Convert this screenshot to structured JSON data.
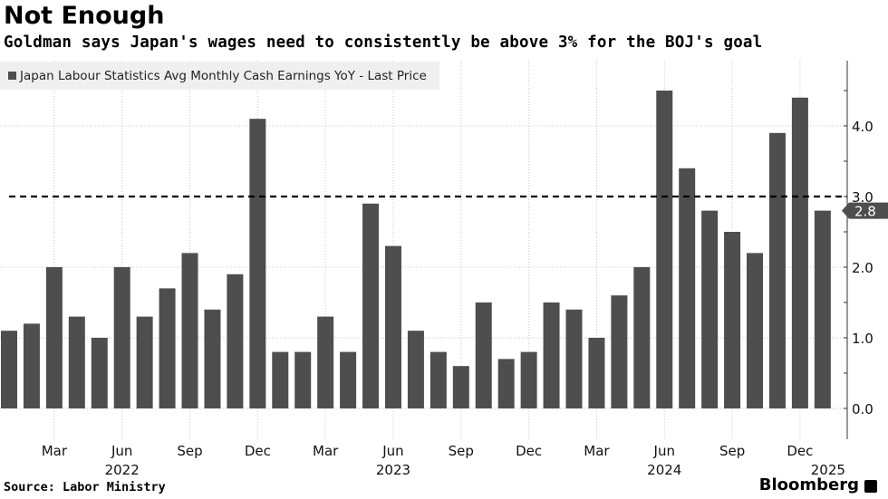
{
  "header": {
    "title": "Not Enough",
    "subtitle": "Goldman says Japan's wages need to consistently be above 3% for the BOJ's goal"
  },
  "footer": {
    "source": "Source: Labor Ministry",
    "brand": "Bloomberg"
  },
  "colors": {
    "bar": "#4e4e4e",
    "reference_line": "#000000",
    "last_value_tag": "#4e4e4e"
  },
  "chart_data": {
    "type": "bar",
    "title": "Not Enough",
    "subtitle": "Goldman says Japan's wages need to consistently be above 3% for the BOJ's goal",
    "legend": {
      "entries": [
        "Japan Labour Statistics Avg Monthly Cash Earnings YoY - Last Price"
      ],
      "placement": "top-left"
    },
    "categories": [
      "2022-01",
      "2022-02",
      "2022-03",
      "2022-04",
      "2022-05",
      "2022-06",
      "2022-07",
      "2022-08",
      "2022-09",
      "2022-10",
      "2022-11",
      "2022-12",
      "2023-01",
      "2023-02",
      "2023-03",
      "2023-04",
      "2023-05",
      "2023-06",
      "2023-07",
      "2023-08",
      "2023-09",
      "2023-10",
      "2023-11",
      "2023-12",
      "2024-01",
      "2024-02",
      "2024-03",
      "2024-04",
      "2024-05",
      "2024-06",
      "2024-07",
      "2024-08",
      "2024-09",
      "2024-10",
      "2024-11",
      "2024-12",
      "2025-01"
    ],
    "values": [
      1.1,
      1.2,
      2.0,
      1.3,
      1.0,
      2.0,
      1.3,
      1.7,
      2.2,
      1.4,
      1.9,
      4.1,
      0.8,
      0.8,
      1.3,
      0.8,
      2.9,
      2.3,
      1.1,
      0.8,
      0.6,
      1.5,
      0.7,
      0.8,
      1.5,
      1.4,
      1.0,
      1.6,
      2.0,
      4.5,
      3.4,
      2.8,
      2.5,
      2.2,
      3.9,
      4.4,
      2.8
    ],
    "x_ticks": [
      {
        "label": "Mar",
        "index": 2
      },
      {
        "label": "Jun",
        "index": 5
      },
      {
        "label": "Sep",
        "index": 8
      },
      {
        "label": "Dec",
        "index": 11
      },
      {
        "label": "Mar",
        "index": 14
      },
      {
        "label": "Jun",
        "index": 17
      },
      {
        "label": "Sep",
        "index": 20
      },
      {
        "label": "Dec",
        "index": 23
      },
      {
        "label": "Mar",
        "index": 26
      },
      {
        "label": "Jun",
        "index": 29
      },
      {
        "label": "Sep",
        "index": 32
      },
      {
        "label": "Dec",
        "index": 35
      }
    ],
    "year_labels": [
      {
        "label": "2022",
        "index": 5
      },
      {
        "label": "2023",
        "index": 17
      },
      {
        "label": "2024",
        "index": 29
      },
      {
        "label": "2025",
        "index": 36
      }
    ],
    "y_ticks": [
      "0.0",
      "1.0",
      "2.0",
      "3.0",
      "4.0"
    ],
    "ylim": [
      -0.45,
      4.9
    ],
    "y_axis_position": "right",
    "reference_line": {
      "value": 3.0,
      "style": "dashed"
    },
    "last_value_label": "2.8",
    "grid": true
  }
}
